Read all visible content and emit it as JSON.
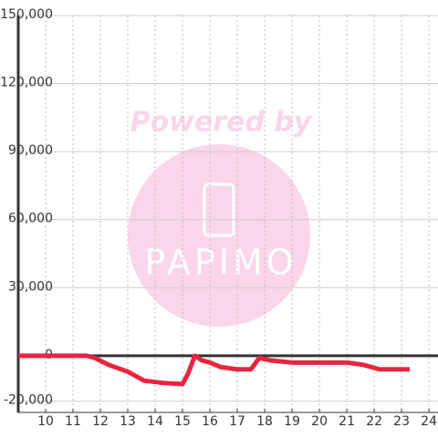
{
  "chart_data": {
    "type": "line",
    "watermark": [
      "Powered by",
      "PAPIMO"
    ],
    "x": [
      9,
      11.5,
      11.8,
      12.3,
      13,
      13.6,
      14.3,
      15,
      15.2,
      15.45,
      15.7,
      16,
      16.4,
      17,
      17.5,
      17.8,
      18.2,
      19,
      21,
      21.6,
      22.2,
      23.3
    ],
    "series": [
      {
        "color": "#e8253f",
        "values": [
          0,
          0,
          -1000,
          -4000,
          -7000,
          -11000,
          -12000,
          -12500,
          -8000,
          0,
          -2000,
          -3000,
          -5000,
          -6000,
          -6000,
          -1000,
          -2000,
          -3000,
          -3000,
          -4000,
          -6000,
          -6000
        ]
      }
    ],
    "xlim": [
      9,
      24.33
    ],
    "xticks": [
      10,
      11,
      12,
      13,
      14,
      15,
      16,
      17,
      18,
      19,
      20,
      21,
      22,
      23,
      24
    ],
    "ylim": [
      -25000,
      150000
    ],
    "yticks": [
      {
        "value": 150000,
        "label": "150,000"
      },
      {
        "value": 120000,
        "label": "120,000"
      },
      {
        "value": 90000,
        "label": "90,000"
      },
      {
        "value": 60000,
        "label": "60,000"
      },
      {
        "value": 30000,
        "label": "30,000"
      },
      0,
      {
        "value": -20000,
        "label": "-20,000"
      }
    ],
    "grid": true
  }
}
